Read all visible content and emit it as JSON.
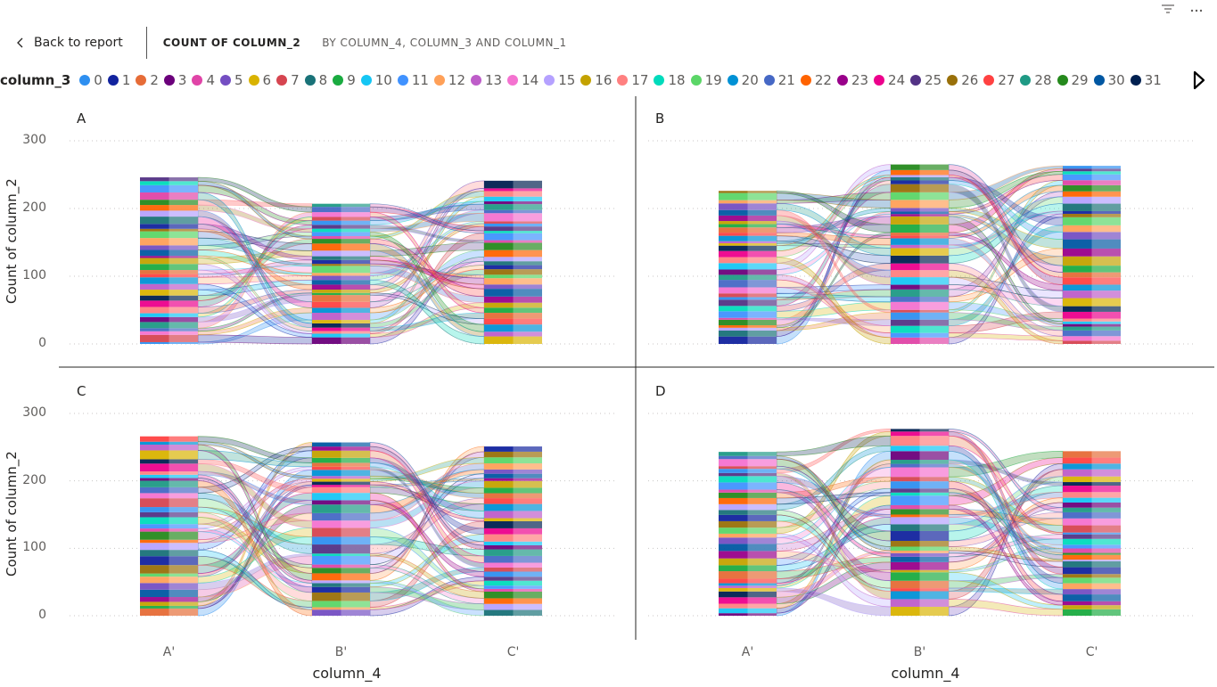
{
  "header": {
    "back_label": "Back to report",
    "title_main": "COUNT OF COLUMN_2",
    "title_sub": "BY COLUMN_4, COLUMN_3 AND COLUMN_1"
  },
  "icons": [
    "filter-icon",
    "more-options-icon",
    "chevron-left-icon",
    "legend-next-icon"
  ],
  "legend": {
    "title": "column_3",
    "items": [
      {
        "label": "0",
        "color": "#2e8ff0"
      },
      {
        "label": "1",
        "color": "#12239e"
      },
      {
        "label": "2",
        "color": "#e66c37"
      },
      {
        "label": "3",
        "color": "#6b007b"
      },
      {
        "label": "4",
        "color": "#e044a7"
      },
      {
        "label": "5",
        "color": "#744ec2"
      },
      {
        "label": "6",
        "color": "#d9b300"
      },
      {
        "label": "7",
        "color": "#d64550"
      },
      {
        "label": "8",
        "color": "#197278"
      },
      {
        "label": "9",
        "color": "#1aab40"
      },
      {
        "label": "10",
        "color": "#15c6f4"
      },
      {
        "label": "11",
        "color": "#4092ff"
      },
      {
        "label": "12",
        "color": "#ffa058"
      },
      {
        "label": "13",
        "color": "#be5dc9"
      },
      {
        "label": "14",
        "color": "#f472d0"
      },
      {
        "label": "15",
        "color": "#b5a1ff"
      },
      {
        "label": "16",
        "color": "#c4a200"
      },
      {
        "label": "17",
        "color": "#ff8080"
      },
      {
        "label": "18",
        "color": "#00dbbc"
      },
      {
        "label": "19",
        "color": "#5bd667"
      },
      {
        "label": "20",
        "color": "#0091d5"
      },
      {
        "label": "21",
        "color": "#4668c5"
      },
      {
        "label": "22",
        "color": "#ff6300"
      },
      {
        "label": "23",
        "color": "#99008a"
      },
      {
        "label": "24",
        "color": "#ec008c"
      },
      {
        "label": "25",
        "color": "#533285"
      },
      {
        "label": "26",
        "color": "#99700a"
      },
      {
        "label": "27",
        "color": "#ff4141"
      },
      {
        "label": "28",
        "color": "#1f9a85"
      },
      {
        "label": "29",
        "color": "#25891c"
      },
      {
        "label": "30",
        "color": "#0057a2"
      },
      {
        "label": "31",
        "color": "#002050"
      }
    ]
  },
  "chart_data": {
    "type": "area",
    "xlabel": "column_4",
    "ylabel": "Count of column_2",
    "categories": [
      "A'",
      "B'",
      "C'"
    ],
    "ylim": [
      0,
      300
    ],
    "yticks": [
      "0",
      "100",
      "200",
      "300"
    ],
    "grid": true,
    "panels": [
      {
        "name": "A",
        "totals": [
          246,
          207,
          241
        ]
      },
      {
        "name": "B",
        "totals": [
          226,
          265,
          263
        ]
      },
      {
        "name": "C",
        "totals": [
          266,
          257,
          251
        ]
      },
      {
        "name": "D",
        "totals": [
          243,
          277,
          244
        ]
      }
    ]
  }
}
